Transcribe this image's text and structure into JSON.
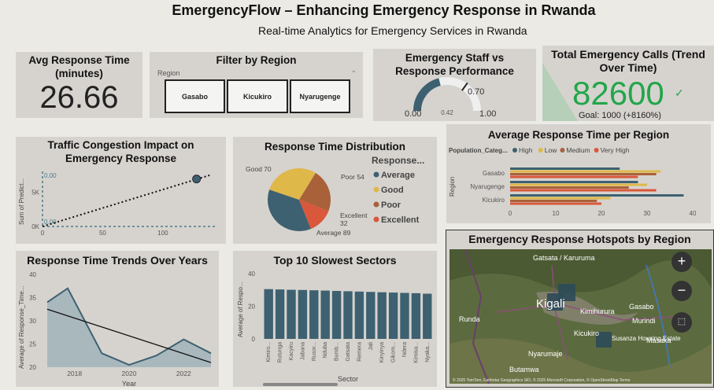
{
  "header": {
    "title": "EmergencyFlow – Enhancing Emergency Response in Rwanda",
    "subtitle": "Real-time Analytics for Emergency Services in Rwanda"
  },
  "avg_response": {
    "title": "Avg Response Time (minutes)",
    "value": "26.66"
  },
  "filter": {
    "title": "Filter by Region",
    "label": "Region",
    "options": [
      "Gasabo",
      "Kicukiro",
      "Nyarugenge"
    ]
  },
  "staff_gauge": {
    "title": "Emergency Staff vs Response Performance",
    "min_label": "0.00",
    "max_label": "1.00",
    "target_label": "0.70",
    "value_label": "0.42",
    "value": 0.42,
    "target": 0.7
  },
  "total_calls": {
    "title": "Total Emergency Calls (Trend Over Time)",
    "value": "82600",
    "goal": "Goal: 1000 (+8160%)"
  },
  "colors": {
    "teal": "#3e6171",
    "gold": "#dfb84a",
    "rust": "#a9613a",
    "orange": "#d9573a",
    "green": "#22a64a"
  },
  "chart_data": [
    {
      "id": "traffic",
      "type": "scatter",
      "title": "Traffic Congestion Impact on Emergency Response",
      "ylabel": "Sum of Predict...",
      "xticks": [
        "0",
        "50",
        "100"
      ],
      "yticks": [
        "0K",
        "5K"
      ],
      "ref_labels": [
        "0.00",
        "0.00"
      ],
      "points": [
        {
          "x": 128,
          "y": 6900
        }
      ],
      "trend": [
        {
          "x": 0,
          "y": 0
        },
        {
          "x": 140,
          "y": 7500
        }
      ],
      "xlim": [
        0,
        140
      ],
      "ylim": [
        0,
        8000
      ]
    },
    {
      "id": "distribution",
      "type": "pie",
      "title": "Response Time Distribution",
      "legend_title": "Response...",
      "slices": [
        {
          "name": "Average",
          "value": 89,
          "label": "Average 89",
          "color": "#3e6171"
        },
        {
          "name": "Good",
          "value": 70,
          "label": "Good 70",
          "color": "#dfb84a"
        },
        {
          "name": "Poor",
          "value": 54,
          "label": "Poor 54",
          "color": "#a9613a"
        },
        {
          "name": "Excellent",
          "value": 32,
          "label": "Excellent 32",
          "color": "#d9573a"
        }
      ]
    },
    {
      "id": "region",
      "type": "bar",
      "title": "Average Response Time per Region",
      "legend_title": "Population_Categ...",
      "ylabel": "Region",
      "categories": [
        "Gasabo",
        "Nyarugenge",
        "Kicukiro"
      ],
      "series": [
        {
          "name": "High",
          "color": "#3e6171",
          "values": [
            24,
            28,
            38
          ]
        },
        {
          "name": "Low",
          "color": "#dfb84a",
          "values": [
            33,
            30,
            22
          ]
        },
        {
          "name": "Medium",
          "color": "#a9613a",
          "values": [
            32,
            26,
            19
          ]
        },
        {
          "name": "Very High",
          "color": "#d9573a",
          "values": [
            28,
            32,
            20
          ]
        }
      ],
      "xticks": [
        "0",
        "10",
        "20",
        "30",
        "40"
      ],
      "xlim": [
        0,
        40
      ]
    },
    {
      "id": "trends",
      "type": "area",
      "title": "Response Time Trends Over Years",
      "xlabel": "Year",
      "ylabel": "Average of Response_Time...",
      "x": [
        2016,
        2017,
        2018,
        2019,
        2020,
        2021,
        2022,
        2023
      ],
      "values": [
        34,
        37,
        23,
        20.5,
        22.5,
        26,
        23,
        0
      ],
      "years_shown": [
        2016,
        2017,
        2018,
        2019,
        2020,
        2021,
        2022,
        2023
      ],
      "xticks": [
        "2018",
        "2020",
        "2022"
      ],
      "yticks": [
        "20",
        "25",
        "30",
        "35",
        "40"
      ],
      "ylim": [
        20,
        40
      ],
      "trend": [
        32.5,
        21
      ]
    },
    {
      "id": "slowest",
      "type": "bar",
      "title": "Top 10 Slowest Sectors",
      "xlabel": "Sector",
      "ylabel": "Average of Respo...",
      "categories": [
        "Kimiro...",
        "Rutunga",
        "Kacyiru",
        "Jabana",
        "Rusor...",
        "Nduba",
        "Bumb...",
        "Gatsata",
        "Remera",
        "Jali",
        "Kinyinya",
        "Gikom...",
        "Ndera",
        "Kimisa...",
        "Nyaka..."
      ],
      "values": [
        30.5,
        30.3,
        30.1,
        30,
        29.8,
        29.6,
        29.4,
        29.2,
        29,
        28.8,
        28.6,
        28.4,
        28.2,
        28,
        27.7
      ],
      "yticks": [
        "0",
        "20",
        "40"
      ],
      "ylim": [
        0,
        40
      ]
    }
  ],
  "map": {
    "title": "Emergency Response Hotspots by Region",
    "labels": [
      "Gatsata / Karuruma",
      "Kigali",
      "Kimihurura",
      "Gasabo",
      "Murindi",
      "Runda",
      "Kicukiro",
      "Susanza Housing Estate",
      "Masaka",
      "Nyarumaje",
      "Butamwa"
    ],
    "attribution": "© 2025 TomTom, Earthstar Geographics SIO, © 2025 Microsoft Corporation, © OpenStreetMap Terms",
    "zoom_in": "+",
    "zoom_out": "−"
  }
}
